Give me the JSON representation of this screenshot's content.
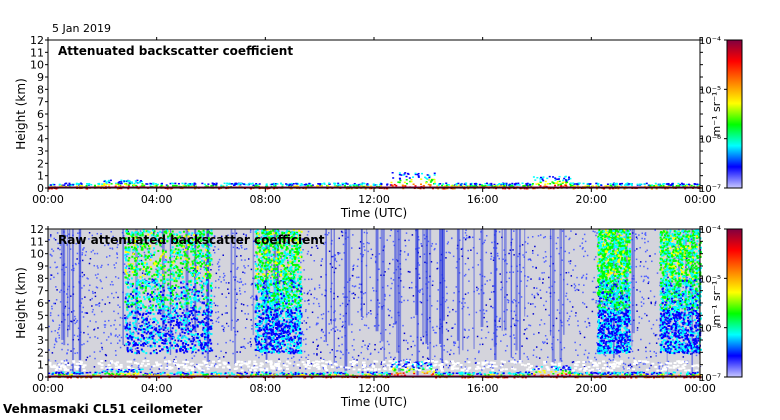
{
  "date": "5 Jan 2019",
  "footer": "Vehmasmaki CL51 ceilometer",
  "colors": {
    "background_gray": "#d4d4dc",
    "colormap": [
      "#c8c8ff",
      "#0000ff",
      "#00ffff",
      "#00ff00",
      "#ffff00",
      "#ff8000",
      "#ff0000",
      "#800040"
    ]
  },
  "chart_data": [
    {
      "type": "heatmap",
      "title": "Attenuated backscatter coefficient",
      "xlabel": "Time (UTC)",
      "ylabel": "Height (km)",
      "x_ticks": [
        "00:00",
        "04:00",
        "08:00",
        "12:00",
        "16:00",
        "20:00",
        "00:00"
      ],
      "y_ticks": [
        0,
        1,
        2,
        3,
        4,
        5,
        6,
        7,
        8,
        9,
        10,
        11,
        12
      ],
      "ylim": [
        0,
        12
      ],
      "xlim_hours": [
        0,
        24
      ],
      "colorbar": {
        "label": "m⁻¹ sr⁻¹",
        "ticks": [
          "10⁻⁴",
          "10⁻⁵",
          "10⁻⁶",
          "10⁻⁷"
        ],
        "scale": "log"
      }
    },
    {
      "type": "heatmap",
      "title": "Raw attenuated backscatter coefficient",
      "xlabel": "Time (UTC)",
      "ylabel": "Height (km)",
      "x_ticks": [
        "00:00",
        "04:00",
        "08:00",
        "12:00",
        "16:00",
        "20:00",
        "00:00"
      ],
      "y_ticks": [
        0,
        1,
        2,
        3,
        4,
        5,
        6,
        7,
        8,
        9,
        10,
        11,
        12
      ],
      "ylim": [
        0,
        12
      ],
      "xlim_hours": [
        0,
        24
      ],
      "colorbar": {
        "label": "m⁻¹ sr⁻¹",
        "ticks": [
          "10⁻⁴",
          "10⁻⁵",
          "10⁻⁶",
          "10⁻⁷"
        ],
        "scale": "log"
      },
      "signal_bands_hours": [
        [
          2.8,
          6.0
        ],
        [
          7.6,
          9.3
        ],
        [
          20.2,
          21.4
        ],
        [
          22.5,
          24.0
        ]
      ]
    }
  ]
}
